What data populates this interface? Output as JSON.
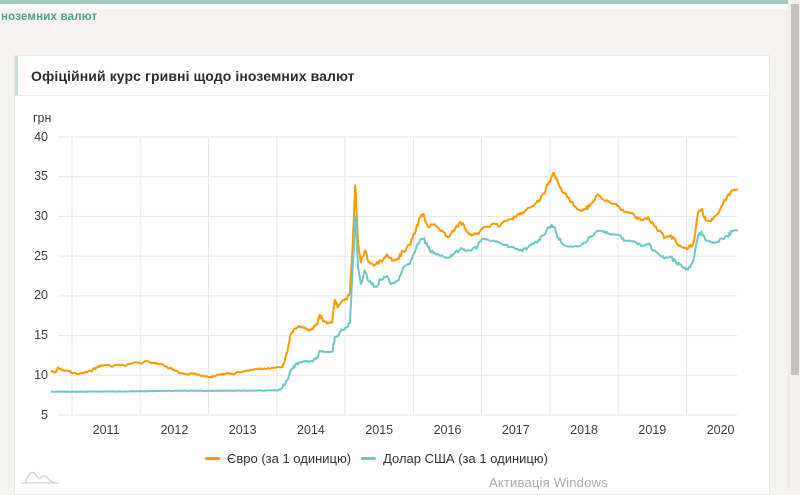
{
  "page": {
    "nav_text": "ноземних валют",
    "watermark": "Активація Windows"
  },
  "card": {
    "title": "Офіційний курс гривні щодо іноземних валют"
  },
  "theme": {
    "topbar_color": "#a3c9bf",
    "nav_text_color": "#4fa38a",
    "grid_color": "#e6e6e6",
    "tick_color": "#3f3f3f",
    "euro_color": "#ff9900",
    "usd_color": "#6ec9c6",
    "scrollbar_thumb_color": "#c3c2c0"
  },
  "icons": {
    "corner_logo": "area-chart-logo-icon"
  },
  "chart_data": {
    "type": "line",
    "title": "Офіційний курс гривні щодо іноземних валют",
    "ylabel": "грн",
    "xlabel": "",
    "grid": true,
    "legend_position": "bottom",
    "x_domain": [
      2010.7,
      2020.74
    ],
    "y_domain": [
      5,
      40
    ],
    "yticks": [
      40,
      35,
      30,
      25,
      20,
      15,
      10,
      5
    ],
    "xticks": [
      "2011",
      "2012",
      "2013",
      "2014",
      "2015",
      "2016",
      "2017",
      "2018",
      "2019",
      "2020"
    ],
    "x": [
      2010.7,
      2010.76,
      2010.8,
      2010.86,
      2010.94,
      2011.02,
      2011.1,
      2011.19,
      2011.27,
      2011.35,
      2011.44,
      2011.52,
      2011.6,
      2011.69,
      2011.77,
      2011.85,
      2011.94,
      2012.02,
      2012.1,
      2012.19,
      2012.27,
      2012.35,
      2012.44,
      2012.52,
      2012.6,
      2012.69,
      2012.77,
      2012.85,
      2012.94,
      2013.02,
      2013.1,
      2013.19,
      2013.27,
      2013.35,
      2013.44,
      2013.52,
      2013.6,
      2013.69,
      2013.77,
      2013.85,
      2013.94,
      2014.02,
      2014.08,
      2014.15,
      2014.21,
      2014.27,
      2014.33,
      2014.4,
      2014.46,
      2014.52,
      2014.58,
      2014.63,
      2014.69,
      2014.75,
      2014.81,
      2014.85,
      2014.9,
      2014.96,
      2015.02,
      2015.07,
      2015.11,
      2015.15,
      2015.19,
      2015.23,
      2015.29,
      2015.35,
      2015.44,
      2015.52,
      2015.6,
      2015.69,
      2015.77,
      2015.85,
      2015.94,
      2016.02,
      2016.1,
      2016.15,
      2016.21,
      2016.29,
      2016.37,
      2016.44,
      2016.52,
      2016.6,
      2016.69,
      2016.77,
      2016.85,
      2016.94,
      2017.02,
      2017.1,
      2017.19,
      2017.27,
      2017.35,
      2017.44,
      2017.52,
      2017.6,
      2017.69,
      2017.77,
      2017.85,
      2017.94,
      2018.02,
      2018.06,
      2018.12,
      2018.19,
      2018.27,
      2018.35,
      2018.44,
      2018.52,
      2018.6,
      2018.69,
      2018.77,
      2018.85,
      2018.94,
      2019.02,
      2019.1,
      2019.19,
      2019.27,
      2019.35,
      2019.44,
      2019.52,
      2019.6,
      2019.69,
      2019.77,
      2019.85,
      2019.94,
      2020.02,
      2020.1,
      2020.17,
      2020.22,
      2020.28,
      2020.36,
      2020.44,
      2020.52,
      2020.6,
      2020.67,
      2020.74
    ],
    "series": [
      {
        "name": "Євро (за 1 одиницю)",
        "color": "#ff9900",
        "values": [
          10.5,
          10.35,
          10.9,
          10.7,
          10.55,
          10.3,
          10.15,
          10.4,
          10.55,
          10.95,
          11.2,
          11.3,
          11.1,
          11.35,
          11.2,
          11.45,
          11.6,
          11.45,
          11.75,
          11.55,
          11.45,
          11.2,
          10.9,
          10.55,
          10.25,
          10.1,
          10.25,
          10.05,
          9.9,
          9.75,
          9.9,
          10.1,
          10.25,
          10.15,
          10.4,
          10.5,
          10.6,
          10.75,
          10.85,
          10.8,
          10.95,
          11.05,
          11.0,
          12.8,
          15.3,
          15.9,
          16.2,
          15.95,
          15.65,
          15.9,
          16.4,
          17.6,
          16.9,
          16.55,
          16.7,
          19.5,
          18.6,
          19.4,
          19.6,
          20.5,
          26.2,
          33.9,
          26.5,
          24.2,
          25.7,
          24.3,
          23.9,
          24.4,
          25.1,
          24.4,
          24.7,
          25.6,
          26.4,
          27.8,
          29.9,
          30.3,
          28.7,
          29.0,
          28.5,
          28.0,
          27.4,
          28.2,
          29.3,
          28.3,
          27.6,
          27.9,
          28.6,
          28.7,
          29.1,
          28.8,
          29.4,
          29.7,
          30.2,
          30.5,
          31.1,
          31.4,
          32.0,
          33.4,
          35.0,
          35.45,
          34.2,
          33.0,
          32.4,
          31.3,
          30.7,
          30.9,
          31.6,
          32.7,
          32.2,
          31.9,
          31.6,
          31.1,
          30.6,
          30.4,
          29.9,
          29.5,
          29.9,
          28.9,
          28.2,
          27.3,
          27.6,
          26.7,
          26.1,
          25.9,
          26.6,
          30.5,
          30.9,
          29.5,
          29.4,
          30.2,
          31.3,
          32.6,
          33.3,
          33.4
        ]
      },
      {
        "name": "Долар США (за 1 одиницю)",
        "color": "#6ec9c6",
        "values": [
          7.93,
          7.93,
          7.93,
          7.93,
          7.93,
          7.93,
          7.93,
          7.94,
          7.94,
          7.95,
          7.96,
          7.96,
          7.96,
          7.96,
          7.96,
          7.97,
          7.98,
          7.99,
          8.0,
          8.01,
          8.02,
          8.03,
          8.04,
          8.05,
          8.06,
          8.06,
          8.06,
          8.06,
          8.05,
          8.05,
          8.05,
          8.06,
          8.06,
          8.06,
          8.07,
          8.07,
          8.07,
          8.08,
          8.08,
          8.08,
          8.09,
          8.1,
          8.4,
          9.4,
          10.7,
          11.3,
          11.6,
          11.8,
          11.7,
          11.8,
          12.2,
          13.1,
          12.95,
          12.95,
          12.95,
          14.8,
          15.0,
          15.7,
          16.0,
          16.6,
          23.2,
          30.0,
          23.5,
          21.5,
          23.2,
          21.8,
          21.2,
          22.0,
          22.4,
          21.6,
          21.9,
          23.5,
          24.0,
          25.5,
          27.1,
          27.2,
          26.2,
          25.4,
          25.2,
          24.9,
          24.8,
          25.3,
          26.0,
          25.7,
          25.7,
          26.2,
          27.2,
          27.0,
          26.9,
          26.6,
          26.4,
          26.1,
          25.9,
          25.6,
          26.2,
          26.6,
          27.0,
          27.9,
          28.9,
          28.6,
          27.3,
          26.5,
          26.2,
          26.2,
          26.3,
          26.7,
          27.5,
          28.2,
          28.2,
          27.9,
          27.7,
          27.6,
          27.0,
          26.9,
          26.7,
          26.3,
          26.5,
          25.7,
          25.2,
          24.8,
          24.9,
          24.2,
          23.6,
          23.3,
          24.4,
          27.6,
          28.1,
          27.0,
          26.7,
          26.7,
          27.2,
          27.5,
          28.1,
          28.3
        ]
      }
    ]
  }
}
